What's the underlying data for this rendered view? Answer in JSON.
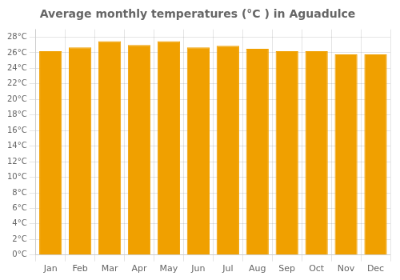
{
  "chart_data": {
    "type": "bar",
    "title": "Average monthly temperatures (°C ) in Aguadulce",
    "categories": [
      "Jan",
      "Feb",
      "Mar",
      "Apr",
      "May",
      "Jun",
      "Jul",
      "Aug",
      "Sep",
      "Oct",
      "Nov",
      "Dec"
    ],
    "values": [
      26.2,
      26.7,
      27.5,
      27.0,
      27.5,
      26.7,
      26.9,
      26.5,
      26.2,
      26.2,
      25.8,
      25.8
    ],
    "color": "#F0A000",
    "ylim": [
      0,
      29
    ],
    "yticks": [
      {
        "value": 0,
        "label": "0°C"
      },
      {
        "value": 2,
        "label": "2°C"
      },
      {
        "value": 4,
        "label": "4°C"
      },
      {
        "value": 6,
        "label": "6°C"
      },
      {
        "value": 8,
        "label": "8°C"
      },
      {
        "value": 10,
        "label": "10°C"
      },
      {
        "value": 12,
        "label": "12°C"
      },
      {
        "value": 14,
        "label": "14°C"
      },
      {
        "value": 16,
        "label": "16°C"
      },
      {
        "value": 18,
        "label": "18°C"
      },
      {
        "value": 20,
        "label": "20°C"
      },
      {
        "value": 22,
        "label": "22°C"
      },
      {
        "value": 24,
        "label": "24°C"
      },
      {
        "value": 26,
        "label": "26°C"
      },
      {
        "value": 28,
        "label": "28°C"
      }
    ],
    "grid": true
  }
}
